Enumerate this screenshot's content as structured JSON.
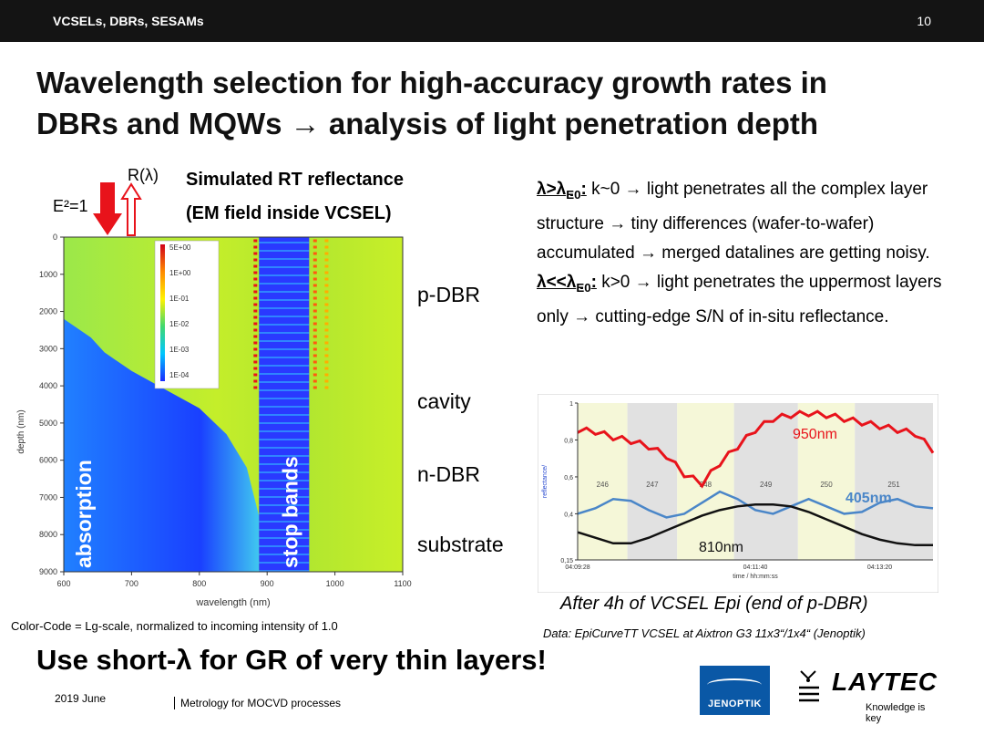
{
  "header": {
    "section": "VCSELs, DBRs, SESAMs",
    "page_number": "10"
  },
  "title": {
    "line1": "Wavelength selection for high-accuracy growth rates in",
    "line2": "DBRs and MQWs → analysis of light penetration depth"
  },
  "left": {
    "e2_label": "E²=1",
    "r_label": "R(λ)",
    "sim_title_1": "Simulated RT reflectance",
    "sim_title_2": "(EM field inside VCSEL)",
    "region_labels": [
      "p-DBR",
      "cavity",
      "n-DBR",
      "substrate"
    ],
    "overlay_absorption": "absorption",
    "overlay_stopbands": "stop bands",
    "color_code": "Color-Code = Lg-scale,  normalized to incoming intensity of 1.0"
  },
  "right": {
    "para1_lead": "λ>λ",
    "para1_sub": "E0",
    "para1_colon": ":",
    "para1_text": " k~0 → light penetrates all the complex layer structure → tiny differences (wafer-to-wafer) accumulated → merged datalines are getting noisy.",
    "para2_lead": "λ<<λ",
    "para2_sub": "E0",
    "para2_colon": ":",
    "para2_text": " k>0 → light penetrates the uppermost layers only → cutting-edge S/N of in-situ reflectance.",
    "caption_1": "After 4h of VCSEL Epi (end of p-DBR)",
    "caption_2": "Data: EpiCurveTT VCSEL at Aixtron G3 11x3“/1x4“ (Jenoptik)"
  },
  "bottom": {
    "slogan": "Use short-λ for GR of very thin layers!",
    "date": "2019 June",
    "meta": "Metrology for MOCVD processes"
  },
  "logos": {
    "jenoptik": "JENOPTIK",
    "laytec": "LAYTEC",
    "laytec_tag": "Knowledge is key"
  },
  "colors": {
    "red": "#e8131b",
    "blue": "#4a86c8",
    "black": "#111111",
    "heat_blue": "#1a2bff"
  },
  "chart_data": [
    {
      "type": "heatmap",
      "title": "",
      "xlabel": "wavelength (nm)",
      "ylabel": "depth (nm)",
      "x_ticks": [
        "600",
        "700",
        "800",
        "900",
        "1000",
        "1100"
      ],
      "y_ticks": [
        "0",
        "1000",
        "2000",
        "3000",
        "4000",
        "5000",
        "6000",
        "7000",
        "8000",
        "9000"
      ],
      "xlim": [
        600,
        1100
      ],
      "ylim": [
        0,
        9000
      ],
      "colorbar": [
        "5E+00",
        "1E+00",
        "1E-01",
        "1E-02",
        "1E-03",
        "1E-04"
      ],
      "stop_band_range": [
        888,
        962
      ],
      "absorption_edge": [
        [
          600,
          2200
        ],
        [
          640,
          2700
        ],
        [
          660,
          3100
        ],
        [
          700,
          3600
        ],
        [
          750,
          4100
        ],
        [
          800,
          4600
        ],
        [
          840,
          5300
        ],
        [
          870,
          6200
        ],
        [
          888,
          7500
        ]
      ]
    },
    {
      "type": "line",
      "xlabel": "time / hh:mm:ss",
      "ylabel": "reflectance/",
      "x_ticks": [
        "04:09:28",
        "04:11:40",
        "04:13:20"
      ],
      "y_ticks": [
        "1",
        "0,8",
        "0,6",
        "0,4",
        "0,15"
      ],
      "ylim": [
        0.15,
        1.0
      ],
      "stage_labels": [
        "246",
        "247",
        "248",
        "249",
        "250",
        "251"
      ],
      "series": [
        {
          "name": "950nm",
          "color": "#e8131b",
          "x": [
            0,
            5,
            10,
            15,
            20,
            25,
            30,
            35,
            40,
            45,
            50,
            55,
            60,
            65,
            70,
            75,
            80,
            85,
            90,
            95,
            100
          ],
          "values": [
            0.84,
            0.83,
            0.8,
            0.78,
            0.75,
            0.7,
            0.6,
            0.55,
            0.66,
            0.75,
            0.84,
            0.9,
            0.92,
            0.93,
            0.92,
            0.9,
            0.88,
            0.86,
            0.84,
            0.82,
            0.73
          ]
        },
        {
          "name": "405nm",
          "color": "#4a86c8",
          "x": [
            0,
            5,
            10,
            15,
            20,
            25,
            30,
            35,
            40,
            45,
            50,
            55,
            60,
            65,
            70,
            75,
            80,
            85,
            90,
            95,
            100
          ],
          "values": [
            0.4,
            0.43,
            0.48,
            0.47,
            0.42,
            0.38,
            0.4,
            0.46,
            0.52,
            0.48,
            0.42,
            0.4,
            0.44,
            0.48,
            0.44,
            0.4,
            0.41,
            0.46,
            0.48,
            0.44,
            0.43
          ]
        },
        {
          "name": "810nm",
          "color": "#111111",
          "x": [
            0,
            5,
            10,
            15,
            20,
            25,
            30,
            35,
            40,
            45,
            50,
            55,
            60,
            65,
            70,
            75,
            80,
            85,
            90,
            95,
            100
          ],
          "values": [
            0.3,
            0.27,
            0.24,
            0.24,
            0.27,
            0.31,
            0.35,
            0.39,
            0.42,
            0.44,
            0.45,
            0.45,
            0.44,
            0.41,
            0.37,
            0.33,
            0.29,
            0.26,
            0.24,
            0.23,
            0.23
          ]
        }
      ]
    }
  ]
}
